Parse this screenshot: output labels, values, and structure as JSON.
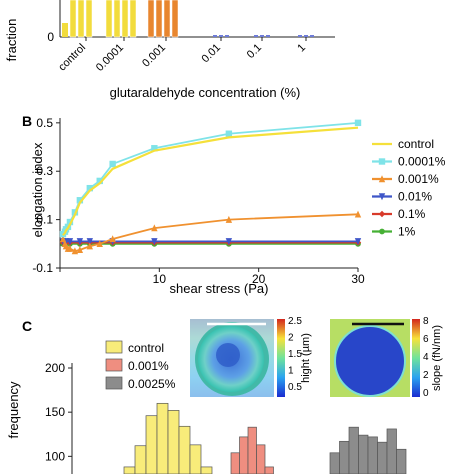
{
  "panels": {
    "b_label": "B",
    "c_label": "C"
  },
  "panel_a": {
    "ylabel": "fraction",
    "yticks": [
      {
        "value": 0,
        "label": "0"
      }
    ],
    "xlabel": "glutaraldehyde concentration (%)",
    "categories": [
      "control",
      "0.0001",
      "0.001",
      "0.01",
      "0.1",
      "1"
    ],
    "colors": [
      "#f2dc3d",
      "#e8862f",
      "#6e7cd8"
    ]
  },
  "chart_data": [
    {
      "type": "line",
      "title": "",
      "xlabel": "shear stress (Pa)",
      "ylabel": "elongation index",
      "xlim": [
        0,
        30
      ],
      "ylim": [
        -0.1,
        0.52
      ],
      "xticks": [
        0,
        10,
        20,
        30
      ],
      "yticks": [
        {
          "value": -0.1,
          "label": "-0.1"
        },
        {
          "value": 0.1,
          "label": "0.1"
        },
        {
          "value": 0.3,
          "label": "0.3"
        },
        {
          "value": 0.5,
          "label": "0.5"
        }
      ],
      "legend_position": "right",
      "series": [
        {
          "name": "control",
          "color": "#f5e03a",
          "marker": "none",
          "x": [
            0.3,
            0.5,
            0.6,
            0.8,
            1,
            1.5,
            2,
            3,
            4,
            5.3,
            9.5,
            17,
            30
          ],
          "y": [
            0.035,
            0.045,
            0.055,
            0.065,
            0.08,
            0.12,
            0.17,
            0.22,
            0.25,
            0.31,
            0.385,
            0.44,
            0.48
          ]
        },
        {
          "name": "0.0001%",
          "color": "#7fe3e8",
          "marker": "square",
          "x": [
            0.3,
            0.5,
            0.6,
            0.8,
            1,
            1.5,
            2,
            3,
            4,
            5.3,
            9.5,
            17,
            30
          ],
          "y": [
            0.04,
            0.05,
            0.06,
            0.07,
            0.09,
            0.13,
            0.18,
            0.23,
            0.26,
            0.33,
            0.395,
            0.455,
            0.5
          ]
        },
        {
          "name": "0.001%",
          "color": "#f0912f",
          "marker": "triangle",
          "x": [
            0.3,
            0.5,
            0.6,
            0.8,
            1,
            1.5,
            2,
            3,
            4,
            5.3,
            9.5,
            17,
            30
          ],
          "y": [
            0.02,
            0.0,
            -0.01,
            -0.02,
            -0.02,
            -0.03,
            -0.025,
            -0.01,
            0.0,
            0.02,
            0.065,
            0.1,
            0.122
          ]
        },
        {
          "name": "0.01%",
          "color": "#3f56c8",
          "marker": "triangle-down",
          "x": [
            0.3,
            0.6,
            1,
            2,
            3,
            5.3,
            9.5,
            17,
            30
          ],
          "y": [
            0.01,
            0.01,
            0.01,
            0.01,
            0.01,
            0.01,
            0.01,
            0.01,
            0.01
          ]
        },
        {
          "name": "0.1%",
          "color": "#d83a2a",
          "marker": "diamond",
          "x": [
            0.3,
            0.6,
            1,
            2,
            3,
            5.3,
            9.5,
            17,
            30
          ],
          "y": [
            0.005,
            0.005,
            0.005,
            0.005,
            0.005,
            0.005,
            0.005,
            0.005,
            0.005
          ]
        },
        {
          "name": "1%",
          "color": "#46b035",
          "marker": "circle",
          "x": [
            0.3,
            0.6,
            1,
            2,
            3,
            5.3,
            9.5,
            17,
            30
          ],
          "y": [
            0.0,
            0.0,
            0.0,
            0.0,
            0.0,
            0.0,
            0.0,
            0.0,
            0.0
          ]
        }
      ]
    },
    {
      "type": "bar",
      "title": "",
      "xlabel": "",
      "ylabel": "frequency",
      "ylim": [
        80,
        200
      ],
      "yticks": [
        100,
        150,
        200
      ],
      "legend_position": "top-left",
      "series": [
        {
          "name": "control",
          "color": "#f8ec7a",
          "values": [
            88,
            112,
            146,
            160,
            152,
            134,
            113,
            88
          ]
        },
        {
          "name": "0.001%",
          "color": "#ef8e80",
          "values": [
            104,
            122,
            133,
            113,
            88
          ]
        },
        {
          "name": "0.0025%",
          "color": "#8c8c8c",
          "values": [
            104,
            117,
            133,
            124,
            122,
            116,
            131,
            108
          ]
        }
      ]
    }
  ],
  "afm": {
    "height_ticks": [
      "2.5",
      "2",
      "1.5",
      "1",
      "0.5"
    ],
    "height_label": "hight (µm)",
    "slope_ticks": [
      "8",
      "6",
      "4",
      "2",
      "0"
    ],
    "slope_label": "slope (fN/nm)"
  }
}
